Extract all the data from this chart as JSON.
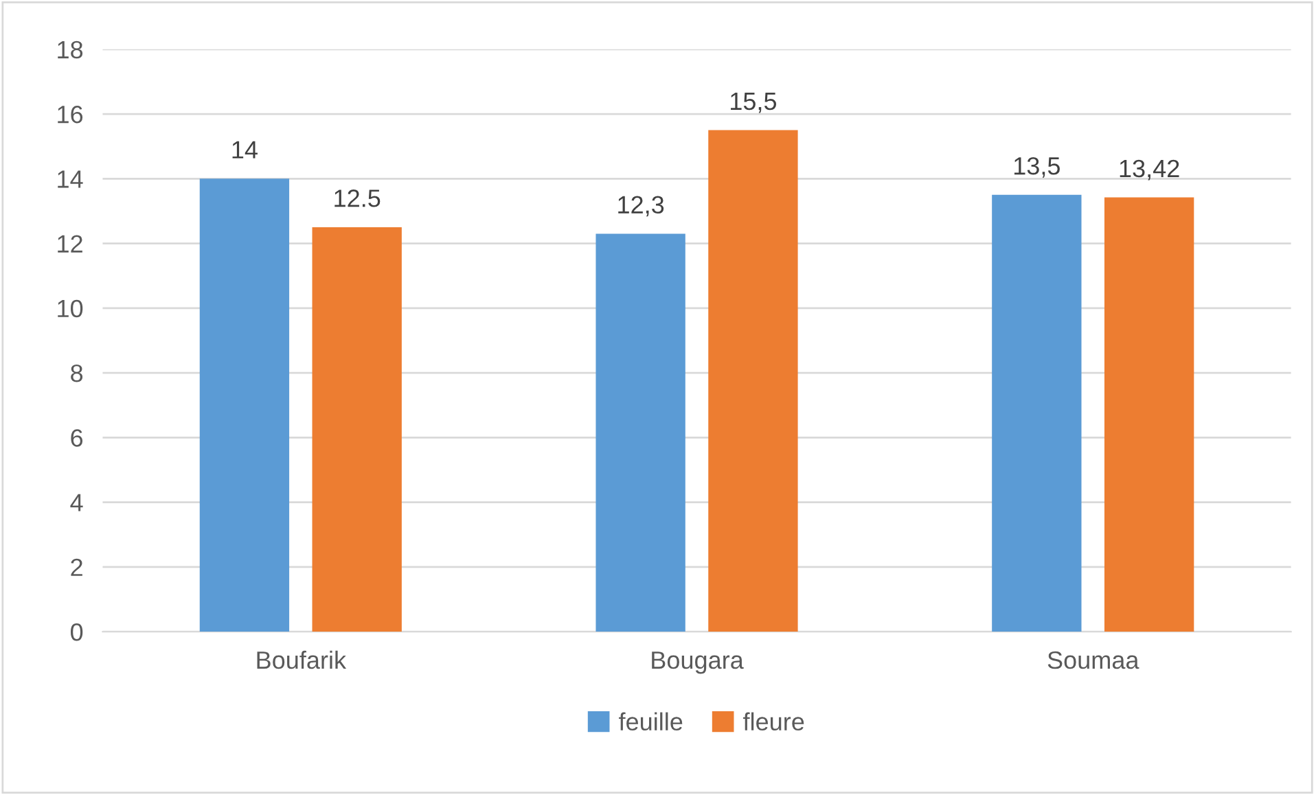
{
  "chart_data": {
    "type": "bar",
    "categories": [
      "Boufarik",
      "Bougara",
      "Soumaa"
    ],
    "series": [
      {
        "name": "feuille",
        "color": "#5b9bd5",
        "values": [
          14,
          12.3,
          13.5
        ],
        "value_labels": [
          "14",
          "12,3",
          "13,5"
        ]
      },
      {
        "name": "fleure",
        "color": "#ed7d31",
        "values": [
          12.5,
          15.5,
          13.42
        ],
        "value_labels": [
          "12.5",
          "15,5",
          "13,42"
        ]
      }
    ],
    "ylim": [
      0,
      18
    ],
    "yticks": [
      0,
      2,
      4,
      6,
      8,
      10,
      12,
      14,
      16,
      18
    ],
    "grid": "y",
    "legend": "bottom"
  }
}
